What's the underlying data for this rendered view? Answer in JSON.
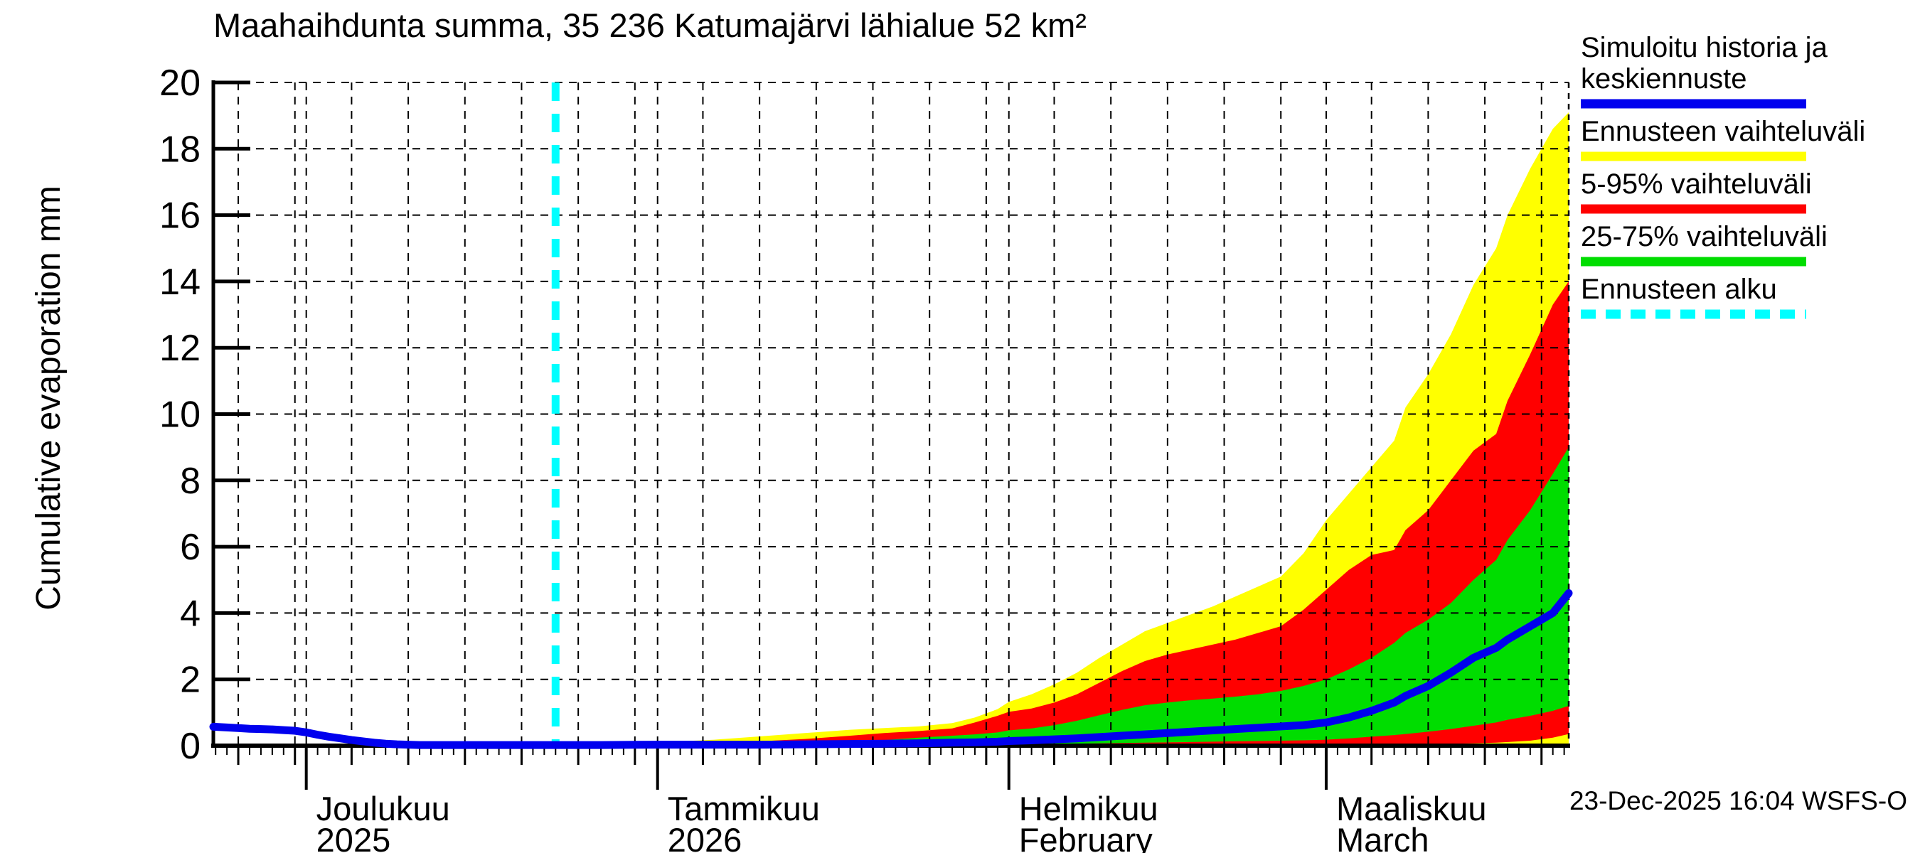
{
  "footer": {
    "timestamp": "23-Dec-2025 16:04 WSFS-O"
  },
  "chart_data": {
    "type": "area",
    "title": "Maahaihdunta summa, 35 236 Katumajärvi lähialue 52 km²",
    "ylabel": "Cumulative evaporation  mm",
    "xlabel": "",
    "ylim": [
      0,
      20
    ],
    "y_ticks": [
      0,
      2,
      4,
      6,
      8,
      10,
      12,
      14,
      16,
      18,
      20
    ],
    "grid": "dashed both axes",
    "legend_position": "right",
    "x_unit": "days since 2025-12-01",
    "xlim_days": [
      -8.2,
      111.4
    ],
    "forecast_start": {
      "label": "Ennusteen alku",
      "day": 22,
      "date": "23-Dec-2025"
    },
    "month_ticks": [
      {
        "day": 0,
        "label": "Joulukuu",
        "sub": "2025"
      },
      {
        "day": 31,
        "label": "Tammikuu",
        "sub": "2026"
      },
      {
        "day": 62,
        "label": "Helmikuu",
        "sub": "February"
      },
      {
        "day": 90,
        "label": "Maaliskuu",
        "sub": "March"
      }
    ],
    "x_gridline_days": [
      -6,
      -1,
      0,
      4,
      9,
      14,
      19,
      24,
      29,
      31,
      35,
      40,
      45,
      50,
      55,
      60,
      62,
      66,
      71,
      76,
      81,
      86,
      90,
      94,
      99,
      104,
      109
    ],
    "history": {
      "name": "Simuloitu historia ja keskiennuste",
      "x": [
        -8.2,
        -7,
        -6,
        -5,
        -4,
        -3,
        -2,
        -1,
        0,
        1,
        2,
        3,
        4,
        5,
        6,
        7,
        8,
        9,
        10,
        12,
        14,
        16,
        18,
        20,
        22
      ],
      "y": [
        0.57,
        0.55,
        0.53,
        0.51,
        0.5,
        0.49,
        0.47,
        0.45,
        0.4,
        0.33,
        0.27,
        0.22,
        0.17,
        0.13,
        0.09,
        0.06,
        0.04,
        0.03,
        0.02,
        0.02,
        0.02,
        0.02,
        0.02,
        0.02,
        0.02
      ]
    },
    "forecast": {
      "x": [
        22,
        26,
        31,
        36,
        40,
        44,
        48,
        51,
        54,
        57,
        59,
        61,
        62,
        64,
        66,
        68,
        70,
        72,
        74,
        76,
        78,
        80,
        82,
        84,
        86,
        88,
        90,
        92,
        94,
        96,
        97,
        99,
        101,
        103,
        105,
        106,
        108,
        110,
        111.4
      ],
      "min": [
        0.02,
        0.02,
        0.02,
        0.02,
        0.02,
        0.02,
        0.02,
        0.02,
        0.02,
        0.02,
        0.02,
        0.02,
        0.02,
        0.02,
        0.02,
        0.02,
        0.02,
        0.02,
        0.02,
        0.02,
        0.02,
        0.02,
        0.02,
        0.02,
        0.02,
        0.02,
        0.02,
        0.02,
        0.02,
        0.02,
        0.03,
        0.03,
        0.03,
        0.03,
        0.04,
        0.04,
        0.05,
        0.05,
        0.06
      ],
      "p5": [
        0.02,
        0.02,
        0.02,
        0.02,
        0.02,
        0.02,
        0.02,
        0.02,
        0.02,
        0.02,
        0.02,
        0.02,
        0.02,
        0.02,
        0.02,
        0.02,
        0.02,
        0.02,
        0.02,
        0.02,
        0.02,
        0.02,
        0.02,
        0.02,
        0.02,
        0.03,
        0.03,
        0.03,
        0.03,
        0.04,
        0.04,
        0.05,
        0.06,
        0.07,
        0.09,
        0.11,
        0.15,
        0.24,
        0.35
      ],
      "p25": [
        0.02,
        0.02,
        0.02,
        0.02,
        0.03,
        0.03,
        0.03,
        0.03,
        0.04,
        0.04,
        0.04,
        0.05,
        0.05,
        0.05,
        0.06,
        0.06,
        0.07,
        0.08,
        0.09,
        0.1,
        0.11,
        0.12,
        0.13,
        0.14,
        0.15,
        0.16,
        0.18,
        0.22,
        0.27,
        0.32,
        0.35,
        0.42,
        0.5,
        0.6,
        0.7,
        0.78,
        0.9,
        1.05,
        1.2
      ],
      "median": [
        0.02,
        0.02,
        0.03,
        0.03,
        0.03,
        0.04,
        0.05,
        0.06,
        0.07,
        0.09,
        0.1,
        0.12,
        0.14,
        0.16,
        0.19,
        0.22,
        0.26,
        0.3,
        0.34,
        0.38,
        0.42,
        0.46,
        0.5,
        0.54,
        0.58,
        0.62,
        0.7,
        0.85,
        1.05,
        1.3,
        1.5,
        1.8,
        2.2,
        2.65,
        2.95,
        3.2,
        3.6,
        4.0,
        4.6
      ],
      "p75": [
        0.02,
        0.02,
        0.03,
        0.04,
        0.05,
        0.08,
        0.12,
        0.17,
        0.24,
        0.3,
        0.34,
        0.4,
        0.46,
        0.52,
        0.62,
        0.75,
        0.92,
        1.08,
        1.22,
        1.3,
        1.37,
        1.42,
        1.48,
        1.55,
        1.65,
        1.8,
        2.0,
        2.3,
        2.65,
        3.1,
        3.4,
        3.8,
        4.3,
        5.0,
        5.6,
        6.2,
        7.1,
        8.2,
        9.0
      ],
      "p95": [
        0.02,
        0.03,
        0.05,
        0.08,
        0.13,
        0.2,
        0.3,
        0.38,
        0.44,
        0.52,
        0.7,
        0.9,
        1.02,
        1.12,
        1.3,
        1.55,
        1.9,
        2.25,
        2.55,
        2.75,
        2.9,
        3.05,
        3.2,
        3.4,
        3.6,
        4.1,
        4.7,
        5.3,
        5.75,
        5.9,
        6.5,
        7.1,
        8.0,
        8.9,
        9.4,
        10.4,
        11.8,
        13.3,
        14.0
      ],
      "max": [
        0.02,
        0.05,
        0.1,
        0.18,
        0.28,
        0.38,
        0.48,
        0.53,
        0.58,
        0.68,
        0.85,
        1.1,
        1.32,
        1.55,
        1.85,
        2.2,
        2.65,
        3.05,
        3.45,
        3.7,
        3.95,
        4.2,
        4.5,
        4.8,
        5.1,
        5.8,
        6.8,
        7.6,
        8.4,
        9.2,
        10.2,
        11.2,
        12.4,
        13.9,
        15.0,
        16.0,
        17.4,
        18.6,
        19.1
      ]
    },
    "legend": [
      {
        "lines": [
          "Simuloitu historia ja",
          "keskiennuste"
        ],
        "color": "#0000ee",
        "dashed": false,
        "name": "simulated-history-and-median"
      },
      {
        "lines": [
          "Ennusteen vaihteluväli"
        ],
        "color": "#ffff00",
        "dashed": false,
        "name": "forecast-total-range"
      },
      {
        "lines": [
          "5-95% vaihteluväli"
        ],
        "color": "#ff0000",
        "dashed": false,
        "name": "range-5-95"
      },
      {
        "lines": [
          "25-75% vaihteluväli"
        ],
        "color": "#00dd00",
        "dashed": false,
        "name": "range-25-75"
      },
      {
        "lines": [
          "Ennusteen alku"
        ],
        "color": "#00ffff",
        "dashed": true,
        "name": "forecast-start"
      }
    ],
    "colors": {
      "band_total": "#ffff00",
      "band_5_95": "#ff0000",
      "band_25_75": "#00dd00",
      "median_line": "#0000ee",
      "forecast_start_line": "#00ffff",
      "axis": "#000000"
    }
  }
}
